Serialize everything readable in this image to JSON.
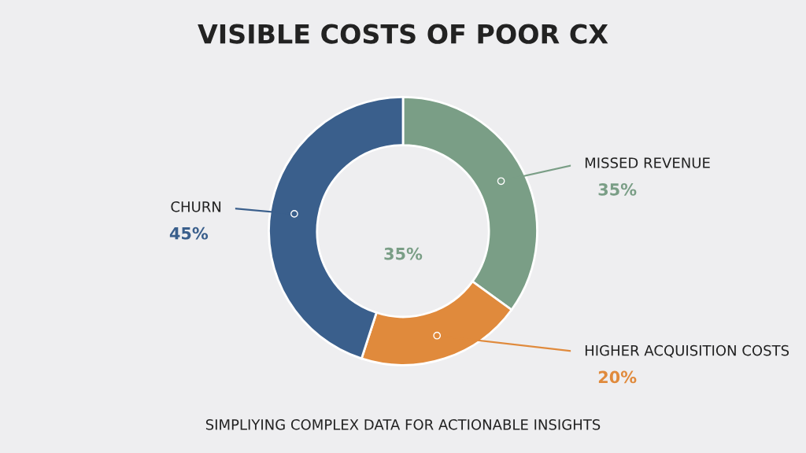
{
  "chart_data": {
    "type": "donut",
    "title": "VISIBLE COSTS OF POOR CX",
    "categories": [
      "MISSED REVENUE",
      "HIGHER ACQUISITION COSTS",
      "CHURN"
    ],
    "values": [
      35,
      20,
      45
    ],
    "colors": [
      "#7a9e86",
      "#e08a3c",
      "#3a5f8c"
    ],
    "value_labels": [
      "35%",
      "20%",
      "45%"
    ],
    "annotations": [
      "35%",
      "SIMPLIYING COMPLEX DATA FOR ACTIONABLE INSIGHTS"
    ],
    "legend": false
  }
}
